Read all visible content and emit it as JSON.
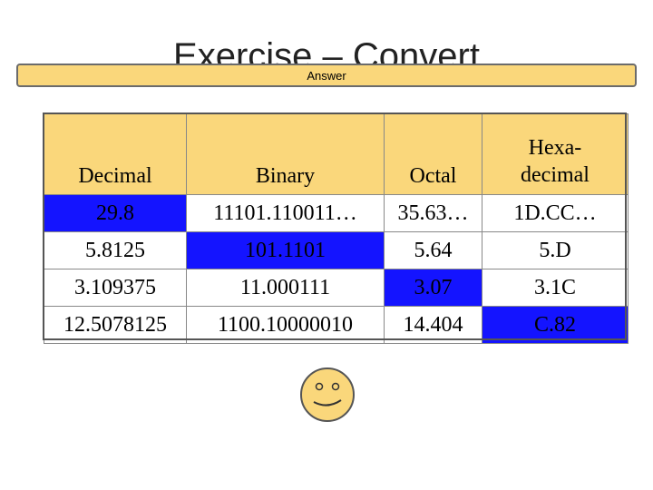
{
  "slide": {
    "title": "Exercise – Convert",
    "answer_label": "Answer"
  },
  "table": {
    "headers": [
      "Decimal",
      "Binary",
      "Octal",
      "Hexa-\ndecimal"
    ],
    "rows": [
      [
        "29.8",
        "11101.110011…",
        "35.63…",
        "1D.CC…"
      ],
      [
        "5.8125",
        "101.1101",
        "5.64",
        "5.D"
      ],
      [
        "3.109375",
        "11.000111",
        "3.07",
        "3.1C"
      ],
      [
        "12.5078125",
        "1100.10000010",
        "14.404",
        "C.82"
      ]
    ],
    "header_color": "#fad77b",
    "highlight_color": "#1414ff"
  },
  "smiley": {
    "icon": "smiley-face-icon",
    "color": "#fad77b"
  }
}
